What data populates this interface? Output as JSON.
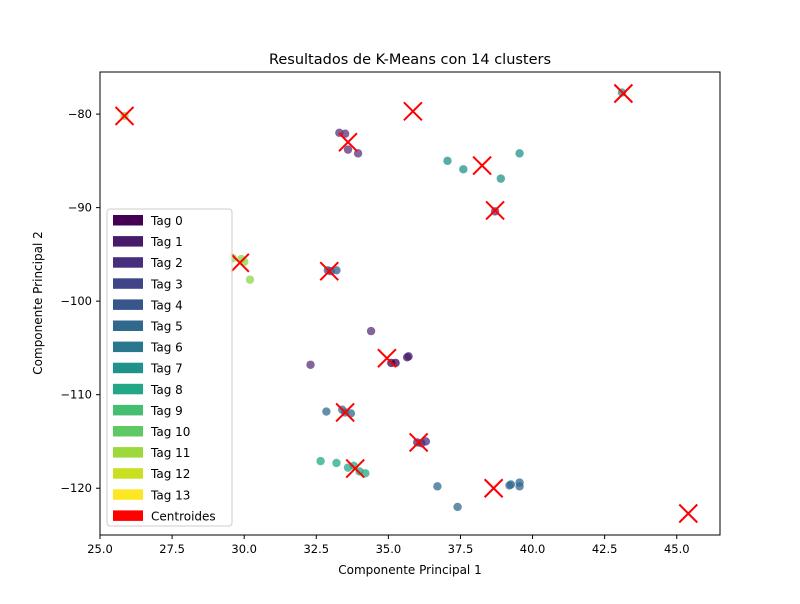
{
  "chart_data": {
    "type": "scatter",
    "title": "Resultados de K-Means con 14 clusters",
    "xlabel": "Componente Principal 1",
    "ylabel": "Componente Principal 2",
    "xlim": [
      25.0,
      46.5
    ],
    "ylim": [
      -125.0,
      -75.5
    ],
    "xticks": [
      "25.0",
      "27.5",
      "30.0",
      "32.5",
      "35.0",
      "37.5",
      "40.0",
      "42.5",
      "45.0"
    ],
    "yticks": [
      "−120",
      "−110",
      "−100",
      "−90",
      "−80"
    ],
    "grid": false,
    "legend_position": "center-left",
    "legend": [
      {
        "label": "Tag 0",
        "color": "#440154"
      },
      {
        "label": "Tag 1",
        "color": "#481a6c"
      },
      {
        "label": "Tag 2",
        "color": "#472f7d"
      },
      {
        "label": "Tag 3",
        "color": "#414487"
      },
      {
        "label": "Tag 4",
        "color": "#39568c"
      },
      {
        "label": "Tag 5",
        "color": "#31688e"
      },
      {
        "label": "Tag 6",
        "color": "#2a788e"
      },
      {
        "label": "Tag 7",
        "color": "#21918c"
      },
      {
        "label": "Tag 8",
        "color": "#22a884"
      },
      {
        "label": "Tag 9",
        "color": "#44bf70"
      },
      {
        "label": "Tag 10",
        "color": "#5ec962"
      },
      {
        "label": "Tag 11",
        "color": "#9bd93c"
      },
      {
        "label": "Tag 12",
        "color": "#c8e020"
      },
      {
        "label": "Tag 13",
        "color": "#fde725"
      },
      {
        "label": "Centroides",
        "color": "#ff0000"
      }
    ],
    "points": [
      {
        "x": 33.3,
        "y": -82.0,
        "color": "#5c2f7a"
      },
      {
        "x": 33.5,
        "y": -82.1,
        "color": "#5c2f7a"
      },
      {
        "x": 33.6,
        "y": -83.8,
        "color": "#5c2f7a"
      },
      {
        "x": 33.95,
        "y": -84.2,
        "color": "#5c2f7a"
      },
      {
        "x": 38.7,
        "y": -90.4,
        "color": "#5c2f7a"
      },
      {
        "x": 32.3,
        "y": -106.8,
        "color": "#5c2f7a"
      },
      {
        "x": 34.4,
        "y": -103.2,
        "color": "#5c2f7a"
      },
      {
        "x": 35.1,
        "y": -106.6,
        "color": "#440154"
      },
      {
        "x": 35.25,
        "y": -106.6,
        "color": "#440154"
      },
      {
        "x": 35.65,
        "y": -106.0,
        "color": "#481a6c"
      },
      {
        "x": 35.7,
        "y": -105.9,
        "color": "#481a6c"
      },
      {
        "x": 36.0,
        "y": -115.1,
        "color": "#472f7d"
      },
      {
        "x": 36.15,
        "y": -115.2,
        "color": "#472f7d"
      },
      {
        "x": 36.3,
        "y": -115.0,
        "color": "#472f7d"
      },
      {
        "x": 32.9,
        "y": -96.7,
        "color": "#3a5a8c"
      },
      {
        "x": 33.0,
        "y": -96.8,
        "color": "#3a5a8c"
      },
      {
        "x": 33.2,
        "y": -96.7,
        "color": "#3a5a8c"
      },
      {
        "x": 32.85,
        "y": -111.8,
        "color": "#31688e"
      },
      {
        "x": 33.4,
        "y": -111.6,
        "color": "#31688e"
      },
      {
        "x": 33.5,
        "y": -111.9,
        "color": "#31688e"
      },
      {
        "x": 33.7,
        "y": -112.0,
        "color": "#31688e"
      },
      {
        "x": 36.7,
        "y": -119.8,
        "color": "#31688e"
      },
      {
        "x": 37.4,
        "y": -122.0,
        "color": "#31688e"
      },
      {
        "x": 39.2,
        "y": -119.7,
        "color": "#31688e"
      },
      {
        "x": 39.25,
        "y": -119.6,
        "color": "#31688e"
      },
      {
        "x": 39.55,
        "y": -119.8,
        "color": "#31688e"
      },
      {
        "x": 39.55,
        "y": -119.4,
        "color": "#31688e"
      },
      {
        "x": 37.05,
        "y": -85.0,
        "color": "#21918c"
      },
      {
        "x": 37.6,
        "y": -85.9,
        "color": "#21918c"
      },
      {
        "x": 38.9,
        "y": -86.9,
        "color": "#21918c"
      },
      {
        "x": 39.55,
        "y": -84.2,
        "color": "#21918c"
      },
      {
        "x": 43.1,
        "y": -77.7,
        "color": "#21918c"
      },
      {
        "x": 32.65,
        "y": -117.1,
        "color": "#22a884"
      },
      {
        "x": 33.2,
        "y": -117.3,
        "color": "#22a884"
      },
      {
        "x": 33.6,
        "y": -117.8,
        "color": "#22a884"
      },
      {
        "x": 33.8,
        "y": -117.6,
        "color": "#22a884"
      },
      {
        "x": 34.0,
        "y": -118.2,
        "color": "#22a884"
      },
      {
        "x": 34.2,
        "y": -118.4,
        "color": "#22a884"
      },
      {
        "x": 25.85,
        "y": -80.2,
        "color": "#8fd44a"
      },
      {
        "x": 29.6,
        "y": -95.4,
        "color": "#8fd44a"
      },
      {
        "x": 29.9,
        "y": -95.5,
        "color": "#8fd44a"
      },
      {
        "x": 30.0,
        "y": -95.8,
        "color": "#8fd44a"
      },
      {
        "x": 30.2,
        "y": -97.7,
        "color": "#8fd44a"
      }
    ],
    "centroids": [
      {
        "x": 25.85,
        "y": -80.2
      },
      {
        "x": 35.85,
        "y": -79.7
      },
      {
        "x": 43.15,
        "y": -77.8
      },
      {
        "x": 33.6,
        "y": -83.0
      },
      {
        "x": 38.25,
        "y": -85.5
      },
      {
        "x": 38.7,
        "y": -90.3
      },
      {
        "x": 29.85,
        "y": -95.9
      },
      {
        "x": 32.95,
        "y": -96.8
      },
      {
        "x": 34.95,
        "y": -106.1
      },
      {
        "x": 33.5,
        "y": -111.9
      },
      {
        "x": 36.05,
        "y": -115.1
      },
      {
        "x": 33.85,
        "y": -117.9
      },
      {
        "x": 38.65,
        "y": -120.0
      },
      {
        "x": 45.4,
        "y": -122.7
      }
    ]
  }
}
